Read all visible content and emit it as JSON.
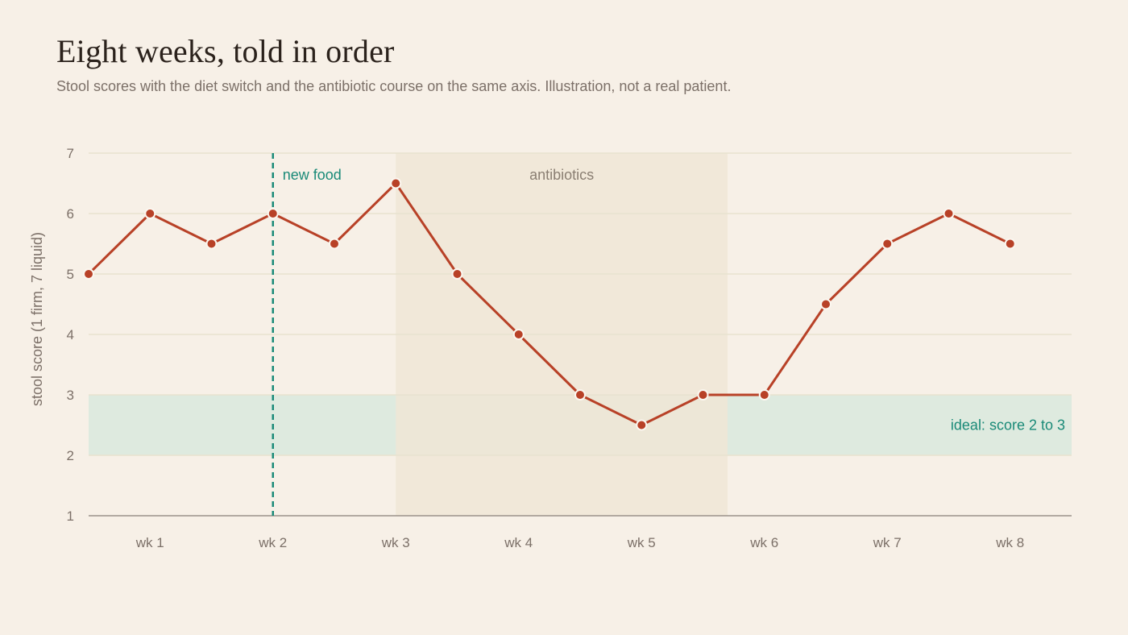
{
  "title": "Eight weeks, told in order",
  "subtitle": "Stool scores with the diet switch and the antibiotic course on the same axis. Illustration, not a real patient.",
  "colors": {
    "background": "#f7f0e7",
    "line": "#b84127",
    "ideal_band": "#deeadf",
    "antibiotic_band": "#f0e6d6",
    "marker_line": "#1a8a78",
    "grid": "#e8e2cf",
    "axis": "#9a918a"
  },
  "chart_data": {
    "type": "line",
    "title": "Eight weeks, told in order",
    "ylabel": "stool score (1 firm, 7 liquid)",
    "xlabel": "",
    "ylim": [
      1,
      7
    ],
    "xlim": [
      0.5,
      8.5
    ],
    "yticks": [
      1,
      2,
      3,
      4,
      5,
      6,
      7
    ],
    "xticks": [
      {
        "value": 1,
        "label": "wk 1"
      },
      {
        "value": 2,
        "label": "wk 2"
      },
      {
        "value": 3,
        "label": "wk 3"
      },
      {
        "value": 4,
        "label": "wk 4"
      },
      {
        "value": 5,
        "label": "wk 5"
      },
      {
        "value": 6,
        "label": "wk 6"
      },
      {
        "value": 7,
        "label": "wk 7"
      },
      {
        "value": 8,
        "label": "wk 8"
      }
    ],
    "grid": true,
    "legend": "none",
    "series": [
      {
        "x": [
          0.5,
          1,
          1.5,
          2,
          2.5,
          3,
          3.5,
          4,
          4.5,
          5,
          5.5,
          6,
          6.5,
          7,
          7.5,
          8
        ],
        "y": [
          5,
          6,
          5.5,
          6,
          5.5,
          6.5,
          5,
          4,
          3,
          2.5,
          3,
          3,
          4.5,
          5.5,
          6,
          5.5
        ]
      }
    ],
    "annotations": {
      "new_food": {
        "x": 2,
        "label": "new food"
      },
      "antibiotics": {
        "x_start": 3,
        "x_end": 5.7,
        "label": "antibiotics"
      },
      "ideal": {
        "y_start": 2,
        "y_end": 3,
        "label": "ideal: score 2 to 3"
      }
    }
  }
}
